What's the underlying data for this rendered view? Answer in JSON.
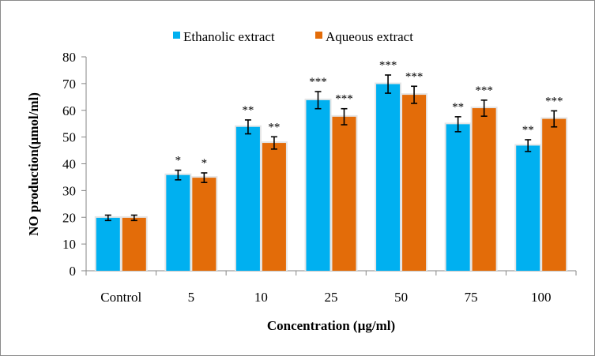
{
  "chart_data": {
    "type": "bar",
    "title": "",
    "xlabel": "Concentration (µg/ml)",
    "ylabel": "NO production(µmol/ml)",
    "ylim": [
      0,
      80
    ],
    "yticks": [
      0,
      10,
      20,
      30,
      40,
      50,
      60,
      70,
      80
    ],
    "grid": false,
    "legend_position": "top-center",
    "categories": [
      "Control",
      "5",
      "10",
      "25",
      "50",
      "75",
      "100"
    ],
    "series": [
      {
        "name": "Ethanolic extract",
        "color": "#00B0F0",
        "values": [
          19.8,
          35.8,
          53.8,
          63.8,
          69.8,
          54.8,
          46.8
        ],
        "errors": [
          1.0,
          1.8,
          2.6,
          3.2,
          3.4,
          2.8,
          2.2
        ],
        "significance": [
          "",
          "*",
          "**",
          "***",
          "***",
          "**",
          "**"
        ]
      },
      {
        "name": "Aqueous extract",
        "color": "#E36C09",
        "values": [
          19.8,
          34.8,
          47.8,
          57.6,
          65.8,
          60.8,
          56.8
        ],
        "errors": [
          1.0,
          1.8,
          2.3,
          3.0,
          3.2,
          3.0,
          3.0
        ],
        "significance": [
          "",
          "*",
          "**",
          "***",
          "***",
          "***",
          "***"
        ]
      }
    ]
  }
}
